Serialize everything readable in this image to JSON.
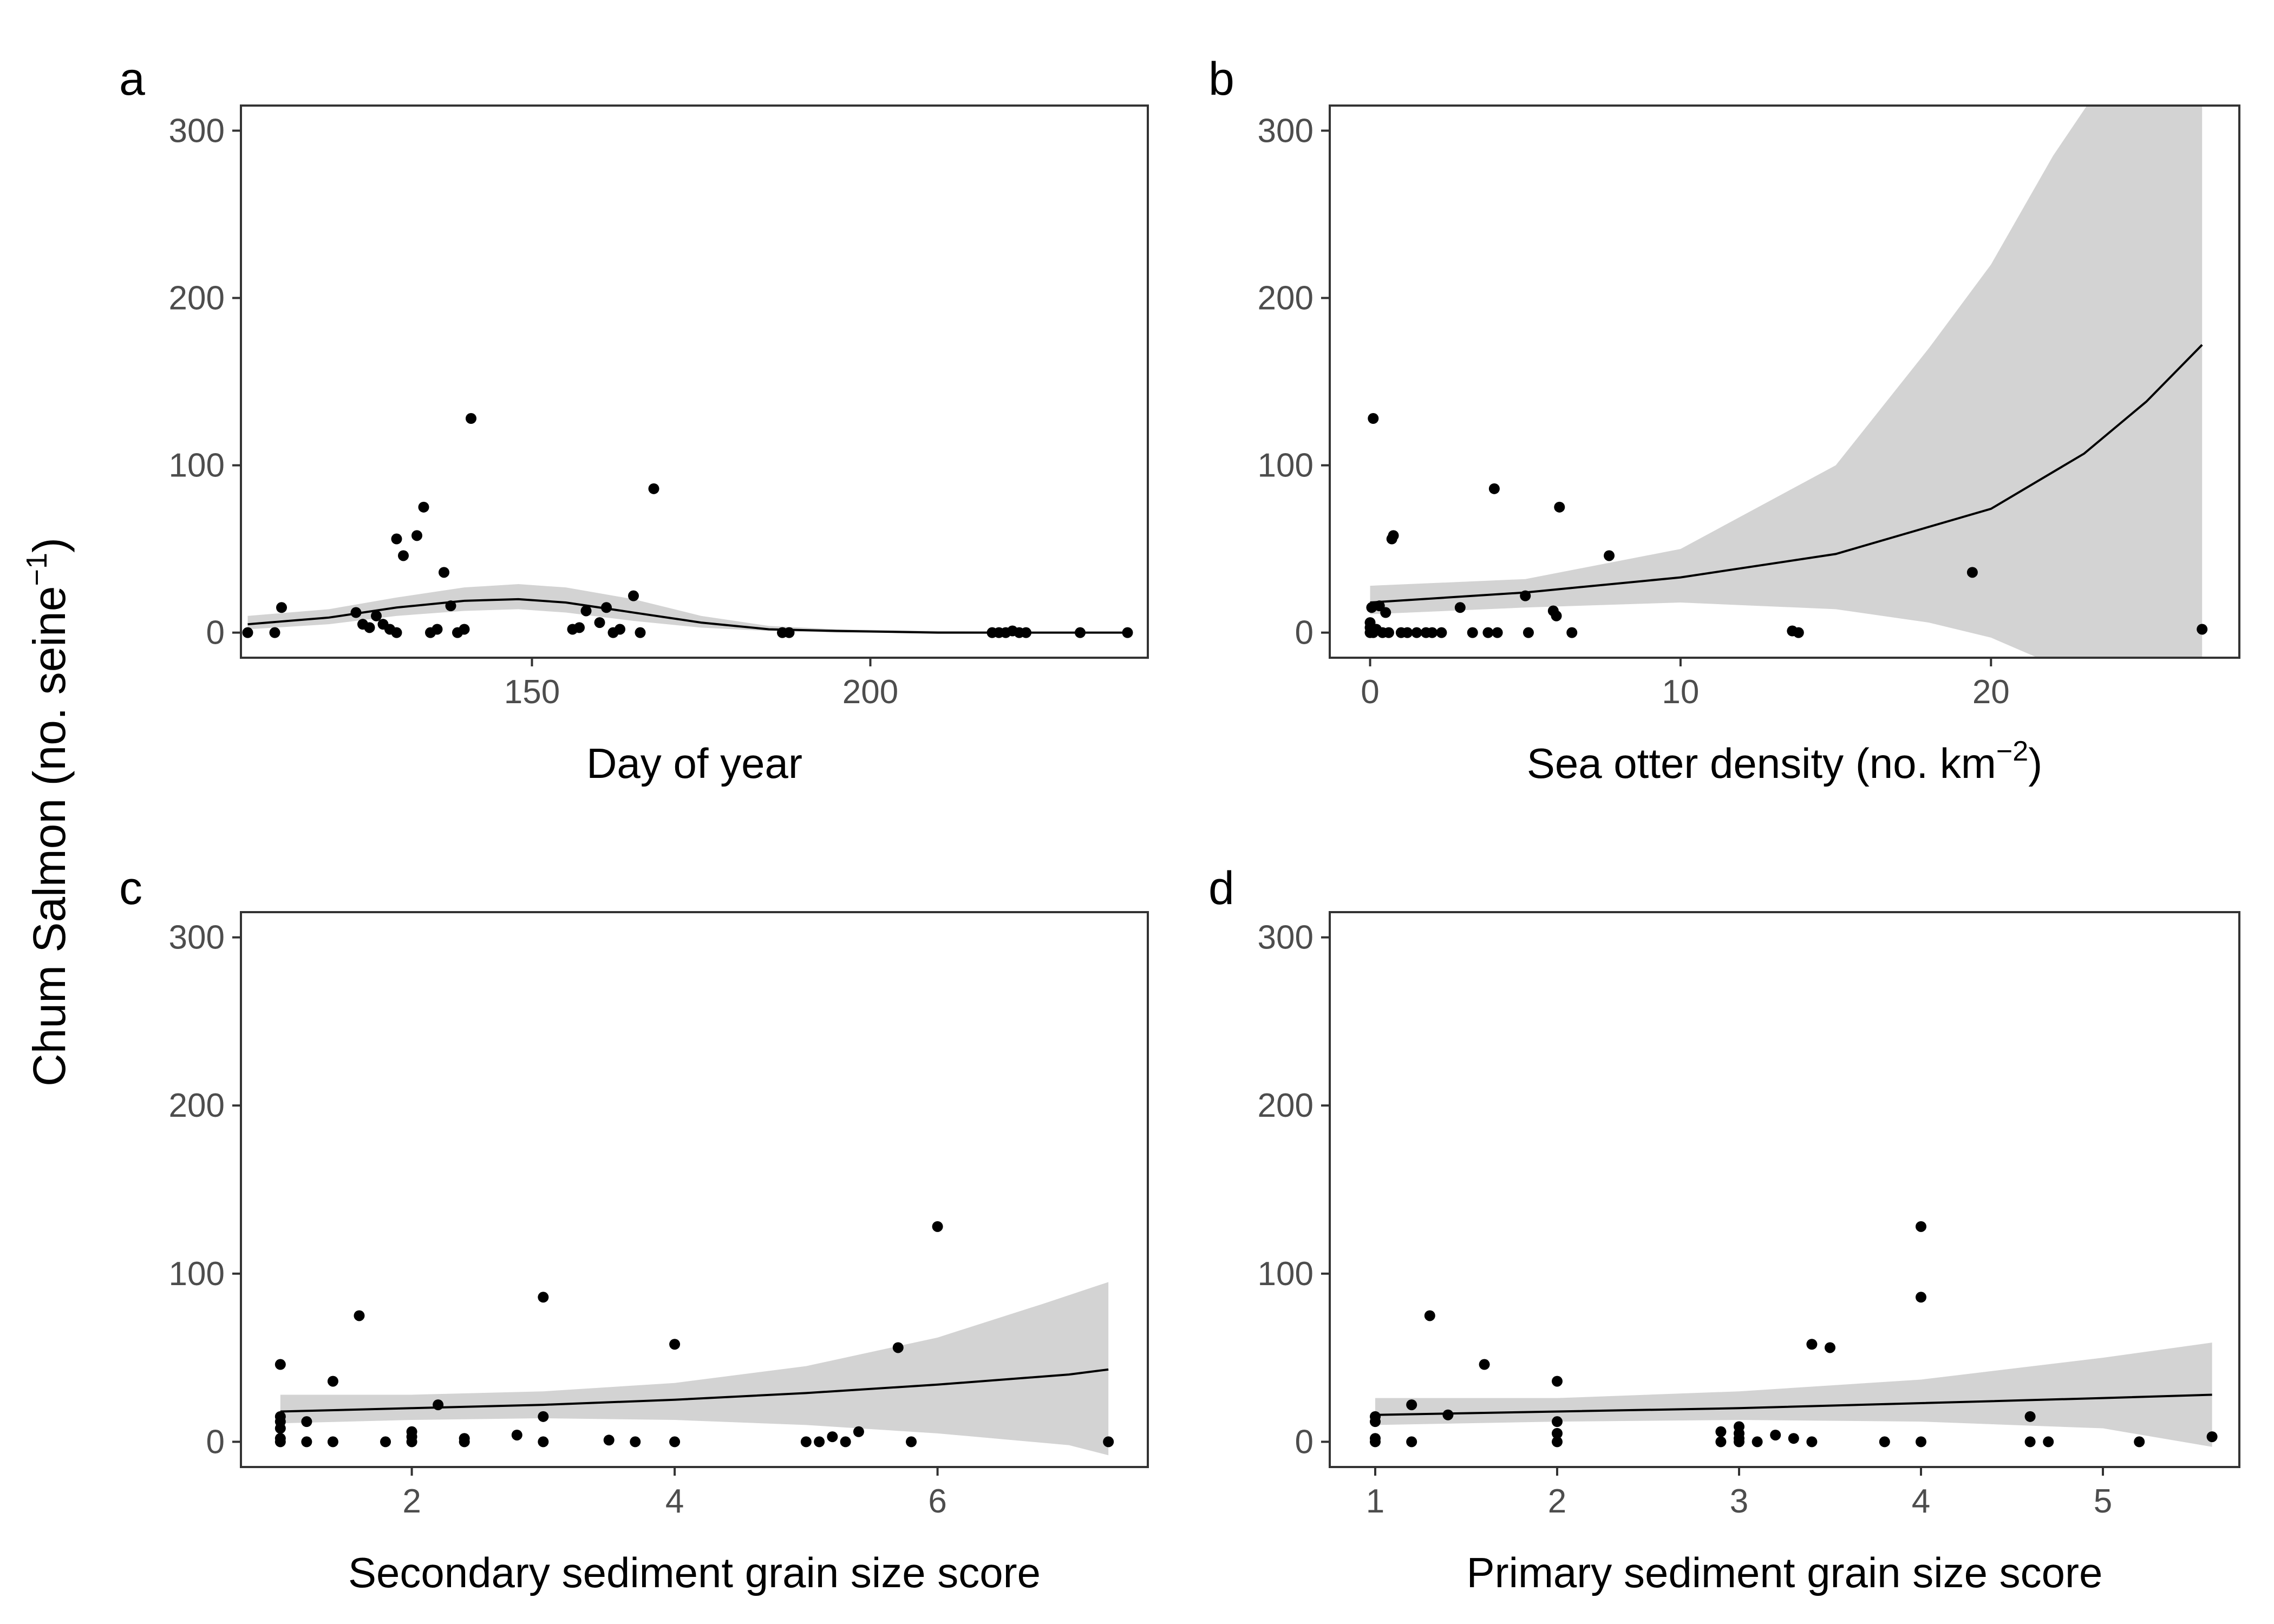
{
  "figure": {
    "ylabel": "Chum Salmon (no. seine",
    "ylabel_sup": "−1",
    "ylabel_close": ")",
    "colors": {
      "points": "#000000",
      "ribbon": "#d3d3d3",
      "line": "#000000",
      "frame": "#333333",
      "tick_text": "#4d4d4d"
    }
  },
  "chart_data": [
    {
      "type": "scatter",
      "panel": "a",
      "xlabel": "Day of year",
      "xlabel_sup": "",
      "xlabel_close": "",
      "xlim": [
        107,
        241
      ],
      "ylim": [
        -15,
        315
      ],
      "xticks": [
        150,
        200
      ],
      "yticks": [
        0,
        100,
        200,
        300
      ],
      "points": [
        [
          108,
          0
        ],
        [
          112,
          0
        ],
        [
          113,
          15
        ],
        [
          124,
          12
        ],
        [
          125,
          5
        ],
        [
          126,
          3
        ],
        [
          127,
          10
        ],
        [
          128,
          5
        ],
        [
          129,
          2
        ],
        [
          130,
          0
        ],
        [
          130,
          56
        ],
        [
          131,
          46
        ],
        [
          133,
          58
        ],
        [
          134,
          75
        ],
        [
          135,
          0
        ],
        [
          136,
          2
        ],
        [
          137,
          36
        ],
        [
          138,
          16
        ],
        [
          139,
          0
        ],
        [
          140,
          2
        ],
        [
          141,
          128
        ],
        [
          156,
          2
        ],
        [
          157,
          3
        ],
        [
          158,
          13
        ],
        [
          160,
          6
        ],
        [
          161,
          15
        ],
        [
          162,
          0
        ],
        [
          163,
          2
        ],
        [
          165,
          22
        ],
        [
          166,
          0
        ],
        [
          168,
          86
        ],
        [
          187,
          0
        ],
        [
          188,
          0
        ],
        [
          218,
          0
        ],
        [
          219,
          0
        ],
        [
          220,
          0
        ],
        [
          221,
          1
        ],
        [
          222,
          0
        ],
        [
          223,
          0
        ],
        [
          231,
          0
        ],
        [
          238,
          0
        ]
      ],
      "fit": [
        [
          108,
          5
        ],
        [
          120,
          9
        ],
        [
          130,
          15
        ],
        [
          140,
          19
        ],
        [
          148,
          20
        ],
        [
          155,
          18
        ],
        [
          165,
          12
        ],
        [
          175,
          6
        ],
        [
          185,
          2
        ],
        [
          195,
          1
        ],
        [
          210,
          0
        ],
        [
          238,
          0
        ]
      ],
      "ribbon_upper": [
        [
          108,
          10
        ],
        [
          120,
          14
        ],
        [
          130,
          21
        ],
        [
          140,
          27
        ],
        [
          148,
          29
        ],
        [
          155,
          27
        ],
        [
          165,
          20
        ],
        [
          175,
          10
        ],
        [
          185,
          4
        ],
        [
          195,
          2
        ],
        [
          210,
          1
        ],
        [
          238,
          0
        ]
      ],
      "ribbon_lower": [
        [
          108,
          2
        ],
        [
          120,
          5
        ],
        [
          130,
          10
        ],
        [
          140,
          13
        ],
        [
          148,
          14
        ],
        [
          155,
          12
        ],
        [
          165,
          7
        ],
        [
          175,
          3
        ],
        [
          185,
          1
        ],
        [
          195,
          0
        ],
        [
          210,
          0
        ],
        [
          238,
          0
        ]
      ]
    },
    {
      "type": "scatter",
      "panel": "b",
      "xlabel": "Sea otter density (no. km",
      "xlabel_sup": "−2",
      "xlabel_close": ")",
      "xlim": [
        -1.3,
        28
      ],
      "ylim": [
        -15,
        315
      ],
      "xticks": [
        0,
        10,
        20
      ],
      "yticks": [
        0,
        100,
        200,
        300
      ],
      "points": [
        [
          0,
          0
        ],
        [
          0,
          3
        ],
        [
          0,
          6
        ],
        [
          0.05,
          15
        ],
        [
          0.1,
          0
        ],
        [
          0.1,
          128
        ],
        [
          0.2,
          2
        ],
        [
          0.3,
          16
        ],
        [
          0.4,
          0
        ],
        [
          0.5,
          12
        ],
        [
          0.6,
          0
        ],
        [
          0.7,
          56
        ],
        [
          0.75,
          58
        ],
        [
          1,
          0
        ],
        [
          1.2,
          0
        ],
        [
          1.5,
          0
        ],
        [
          1.8,
          0
        ],
        [
          2,
          0
        ],
        [
          2.3,
          0
        ],
        [
          2.9,
          15
        ],
        [
          3.3,
          0
        ],
        [
          3.8,
          0
        ],
        [
          4,
          86
        ],
        [
          4.1,
          0
        ],
        [
          5,
          22
        ],
        [
          5.1,
          0
        ],
        [
          5.9,
          13
        ],
        [
          6,
          10
        ],
        [
          6.1,
          75
        ],
        [
          6.5,
          0
        ],
        [
          7.7,
          46
        ],
        [
          13.6,
          1
        ],
        [
          13.8,
          0
        ],
        [
          19.4,
          36
        ],
        [
          26.8,
          2
        ]
      ],
      "fit": [
        [
          0,
          18
        ],
        [
          5,
          24
        ],
        [
          10,
          33
        ],
        [
          15,
          47
        ],
        [
          20,
          74
        ],
        [
          23,
          107
        ],
        [
          25,
          138
        ],
        [
          26.8,
          172
        ]
      ],
      "ribbon_upper": [
        [
          0,
          28
        ],
        [
          5,
          32
        ],
        [
          10,
          50
        ],
        [
          15,
          100
        ],
        [
          18,
          170
        ],
        [
          20,
          220
        ],
        [
          22,
          285
        ],
        [
          24,
          340
        ]
      ],
      "ribbon_lower": [
        [
          0,
          11
        ],
        [
          5,
          15
        ],
        [
          10,
          18
        ],
        [
          15,
          14
        ],
        [
          18,
          6
        ],
        [
          20,
          -3
        ],
        [
          21.5,
          -15
        ]
      ],
      "ribbon_upper_end": [
        [
          24,
          340
        ],
        [
          26.8,
          340
        ]
      ],
      "ribbon_lower_end": [
        [
          21.5,
          -15
        ],
        [
          26.8,
          -15
        ]
      ]
    },
    {
      "type": "scatter",
      "panel": "c",
      "xlabel": "Secondary sediment grain size score",
      "xlabel_sup": "",
      "xlabel_close": "",
      "xlim": [
        0.7,
        7.6
      ],
      "ylim": [
        -15,
        315
      ],
      "xticks": [
        2,
        4,
        6
      ],
      "yticks": [
        0,
        100,
        200,
        300
      ],
      "points": [
        [
          1,
          0
        ],
        [
          1,
          2
        ],
        [
          1,
          8
        ],
        [
          1,
          12
        ],
        [
          1,
          15
        ],
        [
          1,
          46
        ],
        [
          1.2,
          0
        ],
        [
          1.2,
          12
        ],
        [
          1.4,
          0
        ],
        [
          1.4,
          36
        ],
        [
          1.6,
          75
        ],
        [
          1.8,
          0
        ],
        [
          2,
          0
        ],
        [
          2,
          3
        ],
        [
          2,
          6
        ],
        [
          2.2,
          22
        ],
        [
          2.4,
          0
        ],
        [
          2.4,
          2
        ],
        [
          2.8,
          4
        ],
        [
          3,
          0
        ],
        [
          3,
          15
        ],
        [
          3,
          86
        ],
        [
          3.5,
          1
        ],
        [
          3.7,
          0
        ],
        [
          4,
          0
        ],
        [
          4,
          58
        ],
        [
          5,
          0
        ],
        [
          5.1,
          0
        ],
        [
          5.2,
          3
        ],
        [
          5.3,
          0
        ],
        [
          5.4,
          6
        ],
        [
          5.7,
          56
        ],
        [
          5.8,
          0
        ],
        [
          6,
          128
        ],
        [
          7.3,
          0
        ]
      ],
      "fit": [
        [
          1,
          18
        ],
        [
          2,
          20
        ],
        [
          3,
          22
        ],
        [
          4,
          25
        ],
        [
          5,
          29
        ],
        [
          6,
          34
        ],
        [
          7,
          40
        ],
        [
          7.3,
          43
        ]
      ],
      "ribbon_upper": [
        [
          1,
          28
        ],
        [
          2,
          28
        ],
        [
          3,
          30
        ],
        [
          4,
          35
        ],
        [
          5,
          45
        ],
        [
          6,
          62
        ],
        [
          6.8,
          82
        ],
        [
          7.3,
          95
        ]
      ],
      "ribbon_lower": [
        [
          1,
          11
        ],
        [
          2,
          13
        ],
        [
          3,
          14
        ],
        [
          4,
          13
        ],
        [
          5,
          10
        ],
        [
          6,
          5
        ],
        [
          7,
          -2
        ],
        [
          7.3,
          -8
        ]
      ]
    },
    {
      "type": "scatter",
      "panel": "d",
      "xlabel": "Primary sediment grain size score",
      "xlabel_sup": "",
      "xlabel_close": "",
      "xlim": [
        0.75,
        5.75
      ],
      "ylim": [
        -15,
        315
      ],
      "xticks": [
        1,
        2,
        3,
        4,
        5
      ],
      "yticks": [
        0,
        100,
        200,
        300
      ],
      "points": [
        [
          1,
          0
        ],
        [
          1,
          2
        ],
        [
          1,
          12
        ],
        [
          1,
          15
        ],
        [
          1.2,
          0
        ],
        [
          1.2,
          22
        ],
        [
          1.3,
          75
        ],
        [
          1.4,
          16
        ],
        [
          1.6,
          46
        ],
        [
          2,
          0
        ],
        [
          2,
          5
        ],
        [
          2,
          12
        ],
        [
          2,
          36
        ],
        [
          2.9,
          0
        ],
        [
          2.9,
          6
        ],
        [
          3,
          0
        ],
        [
          3,
          2
        ],
        [
          3,
          5
        ],
        [
          3,
          9
        ],
        [
          3.1,
          0
        ],
        [
          3.2,
          4
        ],
        [
          3.3,
          2
        ],
        [
          3.4,
          0
        ],
        [
          3.4,
          58
        ],
        [
          3.5,
          56
        ],
        [
          3.8,
          0
        ],
        [
          4,
          0
        ],
        [
          4,
          86
        ],
        [
          4,
          128
        ],
        [
          4.6,
          0
        ],
        [
          4.6,
          15
        ],
        [
          4.7,
          0
        ],
        [
          5.2,
          0
        ],
        [
          5.6,
          3
        ]
      ],
      "fit": [
        [
          1,
          16
        ],
        [
          2,
          18
        ],
        [
          3,
          20
        ],
        [
          4,
          23
        ],
        [
          5,
          26
        ],
        [
          5.6,
          28
        ]
      ],
      "ribbon_upper": [
        [
          1,
          26
        ],
        [
          2,
          26
        ],
        [
          3,
          30
        ],
        [
          4,
          37
        ],
        [
          5,
          50
        ],
        [
          5.6,
          59
        ]
      ],
      "ribbon_lower": [
        [
          1,
          10
        ],
        [
          2,
          12
        ],
        [
          3,
          13
        ],
        [
          4,
          12
        ],
        [
          5,
          8
        ],
        [
          5.6,
          -3
        ]
      ]
    }
  ]
}
